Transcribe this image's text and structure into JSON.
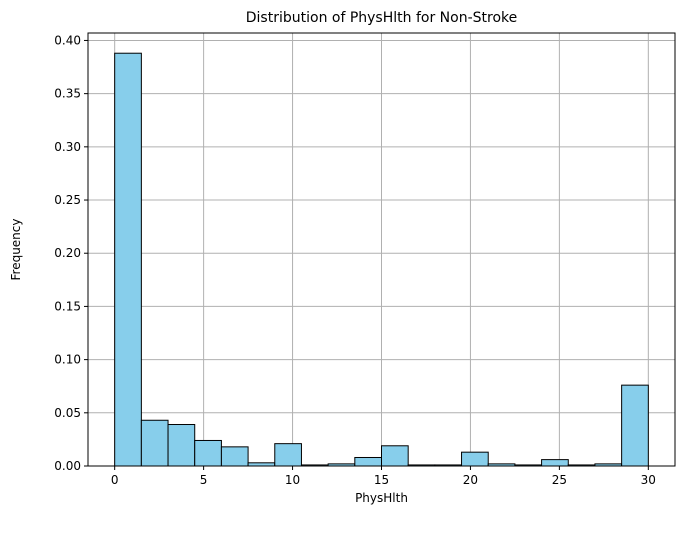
{
  "chart_data": {
    "type": "bar",
    "title": "Distribution of PhysHlth for Non-Stroke",
    "xlabel": "PhysHlth",
    "ylabel": "Frequency",
    "xlim": [
      -1.5,
      31.5
    ],
    "ylim": [
      0,
      0.407
    ],
    "xticks": [
      0,
      5,
      10,
      15,
      20,
      25,
      30
    ],
    "xtick_labels": [
      "0",
      "5",
      "10",
      "15",
      "20",
      "25",
      "30"
    ],
    "yticks": [
      0.0,
      0.05,
      0.1,
      0.15,
      0.2,
      0.25,
      0.3,
      0.35,
      0.4
    ],
    "ytick_labels": [
      "0.00",
      "0.05",
      "0.10",
      "0.15",
      "0.20",
      "0.25",
      "0.30",
      "0.35",
      "0.40"
    ],
    "bin_edges": [
      0,
      1.5,
      3,
      4.5,
      6,
      7.5,
      9,
      10.5,
      12,
      13.5,
      15,
      16.5,
      18,
      19.5,
      21,
      22.5,
      24,
      25.5,
      27,
      28.5,
      30
    ],
    "values": [
      0.388,
      0.043,
      0.039,
      0.024,
      0.018,
      0.003,
      0.021,
      0.001,
      0.002,
      0.008,
      0.019,
      0.001,
      0.001,
      0.013,
      0.002,
      0.001,
      0.006,
      0.001,
      0.002,
      0.076
    ],
    "grid": true,
    "bar_color": "#87CEEB",
    "edge_color": "#000000",
    "grid_color": "#b0b0b0"
  }
}
